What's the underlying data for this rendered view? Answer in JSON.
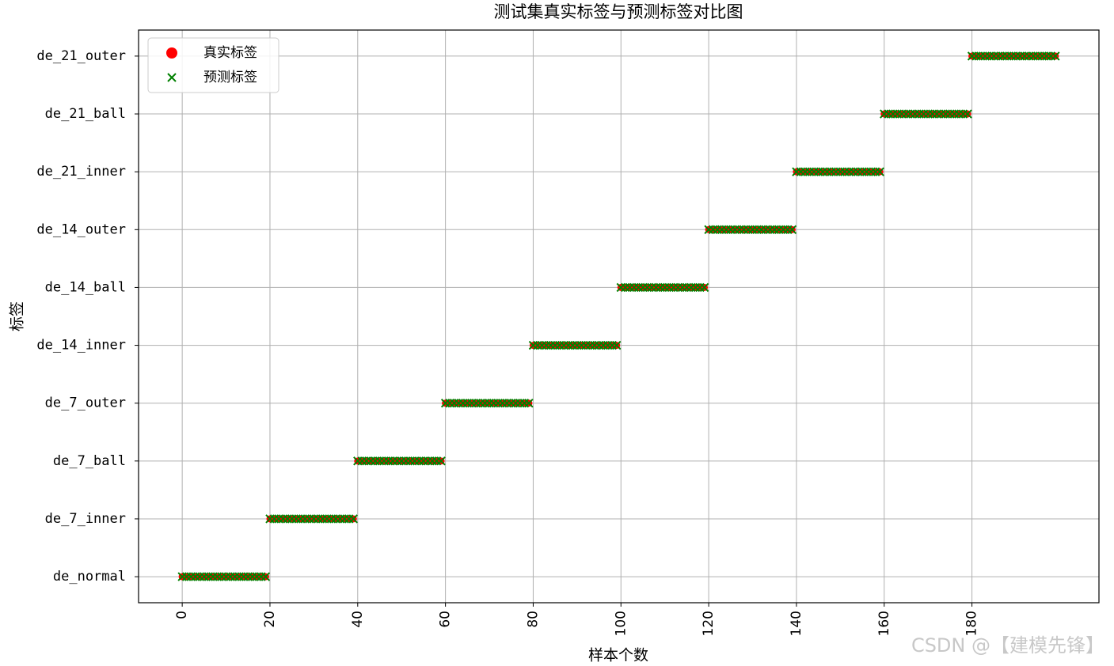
{
  "chart_data": {
    "type": "scatter",
    "title": "测试集真实标签与预测标签对比图",
    "x_label": "样本个数",
    "y_label": "标签",
    "watermark": "CSDN @【建模先锋】",
    "x": [
      0,
      1,
      2,
      3,
      4,
      5,
      6,
      7,
      8,
      9,
      10,
      11,
      12,
      13,
      14,
      15,
      16,
      17,
      18,
      19,
      20,
      21,
      22,
      23,
      24,
      25,
      26,
      27,
      28,
      29,
      30,
      31,
      32,
      33,
      34,
      35,
      36,
      37,
      38,
      39,
      40,
      41,
      42,
      43,
      44,
      45,
      46,
      47,
      48,
      49,
      50,
      51,
      52,
      53,
      54,
      55,
      56,
      57,
      58,
      59,
      60,
      61,
      62,
      63,
      64,
      65,
      66,
      67,
      68,
      69,
      70,
      71,
      72,
      73,
      74,
      75,
      76,
      77,
      78,
      79,
      80,
      81,
      82,
      83,
      84,
      85,
      86,
      87,
      88,
      89,
      90,
      91,
      92,
      93,
      94,
      95,
      96,
      97,
      98,
      99,
      100,
      101,
      102,
      103,
      104,
      105,
      106,
      107,
      108,
      109,
      110,
      111,
      112,
      113,
      114,
      115,
      116,
      117,
      118,
      119,
      120,
      121,
      122,
      123,
      124,
      125,
      126,
      127,
      128,
      129,
      130,
      131,
      132,
      133,
      134,
      135,
      136,
      137,
      138,
      139,
      140,
      141,
      142,
      143,
      144,
      145,
      146,
      147,
      148,
      149,
      150,
      151,
      152,
      153,
      154,
      155,
      156,
      157,
      158,
      159,
      160,
      161,
      162,
      163,
      164,
      165,
      166,
      167,
      168,
      169,
      170,
      171,
      172,
      173,
      174,
      175,
      176,
      177,
      178,
      179,
      180,
      181,
      182,
      183,
      184,
      185,
      186,
      187,
      188,
      189,
      190,
      191,
      192,
      193,
      194,
      195,
      196,
      197,
      198,
      199
    ],
    "series": [
      {
        "name": "真实标签",
        "color": "#ff0000",
        "marker": "o",
        "values": [
          0,
          0,
          0,
          0,
          0,
          0,
          0,
          0,
          0,
          0,
          0,
          0,
          0,
          0,
          0,
          0,
          0,
          0,
          0,
          0,
          1,
          1,
          1,
          1,
          1,
          1,
          1,
          1,
          1,
          1,
          1,
          1,
          1,
          1,
          1,
          1,
          1,
          1,
          1,
          1,
          2,
          2,
          2,
          2,
          2,
          2,
          2,
          2,
          2,
          2,
          2,
          2,
          2,
          2,
          2,
          2,
          2,
          2,
          2,
          2,
          3,
          3,
          3,
          3,
          3,
          3,
          3,
          3,
          3,
          3,
          3,
          3,
          3,
          3,
          3,
          3,
          3,
          3,
          3,
          3,
          4,
          4,
          4,
          4,
          4,
          4,
          4,
          4,
          4,
          4,
          4,
          4,
          4,
          4,
          4,
          4,
          4,
          4,
          4,
          4,
          5,
          5,
          5,
          5,
          5,
          5,
          5,
          5,
          5,
          5,
          5,
          5,
          5,
          5,
          5,
          5,
          5,
          5,
          5,
          5,
          6,
          6,
          6,
          6,
          6,
          6,
          6,
          6,
          6,
          6,
          6,
          6,
          6,
          6,
          6,
          6,
          6,
          6,
          6,
          6,
          7,
          7,
          7,
          7,
          7,
          7,
          7,
          7,
          7,
          7,
          7,
          7,
          7,
          7,
          7,
          7,
          7,
          7,
          7,
          7,
          8,
          8,
          8,
          8,
          8,
          8,
          8,
          8,
          8,
          8,
          8,
          8,
          8,
          8,
          8,
          8,
          8,
          8,
          8,
          8,
          9,
          9,
          9,
          9,
          9,
          9,
          9,
          9,
          9,
          9,
          9,
          9,
          9,
          9,
          9,
          9,
          9,
          9,
          9,
          9
        ]
      },
      {
        "name": "预测标签",
        "color": "#008000",
        "marker": "x",
        "values": [
          0,
          0,
          0,
          0,
          0,
          0,
          0,
          0,
          0,
          0,
          0,
          0,
          0,
          0,
          0,
          0,
          0,
          0,
          0,
          0,
          1,
          1,
          1,
          1,
          1,
          1,
          1,
          1,
          1,
          1,
          1,
          1,
          1,
          1,
          1,
          1,
          1,
          1,
          1,
          1,
          2,
          2,
          2,
          2,
          2,
          2,
          2,
          2,
          2,
          2,
          2,
          2,
          2,
          2,
          2,
          2,
          2,
          2,
          2,
          2,
          3,
          3,
          3,
          3,
          3,
          3,
          3,
          3,
          3,
          3,
          3,
          3,
          3,
          3,
          3,
          3,
          3,
          3,
          3,
          3,
          4,
          4,
          4,
          4,
          4,
          4,
          4,
          4,
          4,
          4,
          4,
          4,
          4,
          4,
          4,
          4,
          4,
          4,
          4,
          4,
          5,
          5,
          5,
          5,
          5,
          5,
          5,
          5,
          5,
          5,
          5,
          5,
          5,
          5,
          5,
          5,
          5,
          5,
          5,
          5,
          6,
          6,
          6,
          6,
          6,
          6,
          6,
          6,
          6,
          6,
          6,
          6,
          6,
          6,
          6,
          6,
          6,
          6,
          6,
          6,
          7,
          7,
          7,
          7,
          7,
          7,
          7,
          7,
          7,
          7,
          7,
          7,
          7,
          7,
          7,
          7,
          7,
          7,
          7,
          7,
          8,
          8,
          8,
          8,
          8,
          8,
          8,
          8,
          8,
          8,
          8,
          8,
          8,
          8,
          8,
          8,
          8,
          8,
          8,
          8,
          9,
          9,
          9,
          9,
          9,
          9,
          9,
          9,
          9,
          9,
          9,
          9,
          9,
          9,
          9,
          9,
          9,
          9,
          9,
          9
        ]
      }
    ],
    "xlim": [
      -9.95,
      208.95
    ],
    "xticks": [
      0,
      20,
      40,
      60,
      80,
      100,
      120,
      140,
      160,
      180
    ],
    "ylim": [
      -0.45,
      9.45
    ],
    "yticks": [
      {
        "value": 0,
        "label": "de_normal"
      },
      {
        "value": 1,
        "label": "de_7_inner"
      },
      {
        "value": 2,
        "label": "de_7_ball"
      },
      {
        "value": 3,
        "label": "de_7_outer"
      },
      {
        "value": 4,
        "label": "de_14_inner"
      },
      {
        "value": 5,
        "label": "de_14_ball"
      },
      {
        "value": 6,
        "label": "de_14_outer"
      },
      {
        "value": 7,
        "label": "de_21_inner"
      },
      {
        "value": 8,
        "label": "de_21_ball"
      },
      {
        "value": 9,
        "label": "de_21_outer"
      }
    ],
    "grid": true,
    "legend": "upper left"
  }
}
